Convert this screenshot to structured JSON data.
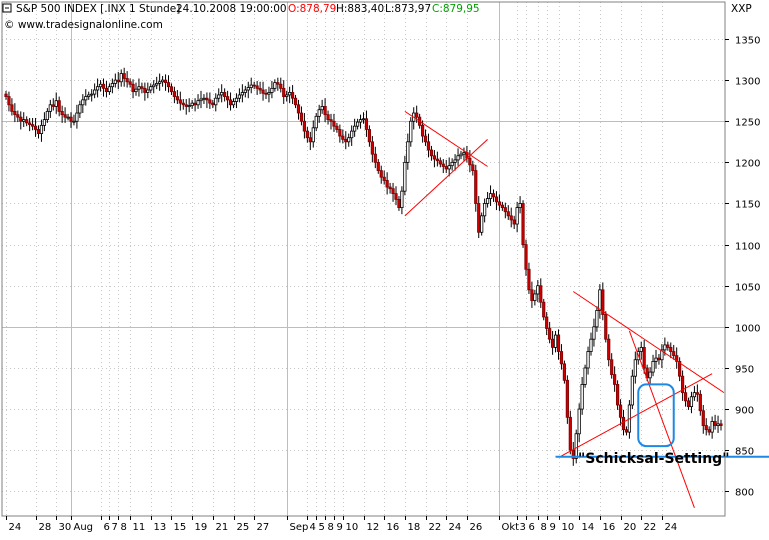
{
  "header": {
    "symbol": "S&P 500 INDEX [.INX  1 Stunde]",
    "datetime": "24.10.2008 19:00:00",
    "open": "O:878,79",
    "high": "H:883,40",
    "low": "L:873,97",
    "close": "C:879,95",
    "source": "© www.tradesignalonline.com",
    "axis_code": "XXP",
    "colors": {
      "open": "#ff0000",
      "close": "#00a000",
      "text": "#000000"
    }
  },
  "chart_data": {
    "type": "candlestick",
    "title": "S&P 500 INDEX [.INX  1 Stunde]",
    "ylim": [
      770,
      1395
    ],
    "y_ticks": [
      800,
      850,
      900,
      950,
      1000,
      1050,
      1100,
      1150,
      1200,
      1250,
      1300,
      1350
    ],
    "y_tick_labels": [
      "800",
      "850",
      "900",
      "950",
      "1000",
      "1050",
      "1100",
      "1150",
      "1200",
      "1250",
      "1300",
      "1350"
    ],
    "x_ticks": [
      {
        "label": "24",
        "i": 0
      },
      {
        "label": "28",
        "i": 10
      },
      {
        "label": "30",
        "i": 17
      },
      {
        "label": "Aug",
        "i": 22
      },
      {
        "label": "6",
        "i": 32
      },
      {
        "label": "7",
        "i": 35
      },
      {
        "label": "8",
        "i": 38
      },
      {
        "label": "11",
        "i": 42
      },
      {
        "label": "13",
        "i": 49
      },
      {
        "label": "15",
        "i": 56
      },
      {
        "label": "19",
        "i": 63
      },
      {
        "label": "21",
        "i": 70
      },
      {
        "label": "25",
        "i": 77
      },
      {
        "label": "27",
        "i": 84
      },
      {
        "label": "Sep",
        "i": 95
      },
      {
        "label": "4",
        "i": 102
      },
      {
        "label": "5",
        "i": 105
      },
      {
        "label": "8",
        "i": 108
      },
      {
        "label": "9",
        "i": 111
      },
      {
        "label": "10",
        "i": 114
      },
      {
        "label": "12",
        "i": 121
      },
      {
        "label": "16",
        "i": 128
      },
      {
        "label": "18",
        "i": 135
      },
      {
        "label": "22",
        "i": 142
      },
      {
        "label": "24",
        "i": 149
      },
      {
        "label": "26",
        "i": 156
      },
      {
        "label": "Okt",
        "i": 167
      },
      {
        "label": "3",
        "i": 173
      },
      {
        "label": "6",
        "i": 176
      },
      {
        "label": "8",
        "i": 180
      },
      {
        "label": "9",
        "i": 183
      },
      {
        "label": "10",
        "i": 187
      },
      {
        "label": "14",
        "i": 194
      },
      {
        "label": "16",
        "i": 201
      },
      {
        "label": "20",
        "i": 208
      },
      {
        "label": "22",
        "i": 215
      },
      {
        "label": "24",
        "i": 222
      }
    ],
    "grid": "dotted",
    "support_line": {
      "value": 842,
      "color": "#1e88e5"
    },
    "trend_lines": [
      {
        "color": "#ff0000",
        "from": {
          "i": 135,
          "v": 1262
        },
        "to": {
          "i": 163,
          "v": 1195
        }
      },
      {
        "color": "#ff0000",
        "from": {
          "i": 135,
          "v": 1135
        },
        "to": {
          "i": 163,
          "v": 1228
        }
      },
      {
        "color": "#ff0000",
        "from": {
          "i": 192,
          "v": 1043
        },
        "to": {
          "i": 243,
          "v": 920
        }
      },
      {
        "color": "#ff0000",
        "from": {
          "i": 188,
          "v": 843
        },
        "to": {
          "i": 239,
          "v": 943
        }
      },
      {
        "color": "#ff0000",
        "from": {
          "i": 211,
          "v": 995
        },
        "to": {
          "i": 233,
          "v": 780
        }
      }
    ],
    "highlight_box": {
      "from_i": 214,
      "to_i": 226,
      "v_top": 930,
      "v_bottom": 855,
      "color": "#1e88e5"
    },
    "annotation": "\"Schicksal-Setting\"",
    "closes": [
      1280,
      1270,
      1262,
      1258,
      1255,
      1250,
      1252,
      1248,
      1246,
      1244,
      1240,
      1235,
      1245,
      1252,
      1262,
      1270,
      1268,
      1275,
      1262,
      1258,
      1255,
      1255,
      1250,
      1250,
      1260,
      1270,
      1276,
      1280,
      1282,
      1283,
      1288,
      1292,
      1295,
      1290,
      1286,
      1292,
      1296,
      1300,
      1298,
      1308,
      1302,
      1298,
      1295,
      1286,
      1289,
      1292,
      1290,
      1285,
      1288,
      1292,
      1294,
      1296,
      1298,
      1300,
      1297,
      1292,
      1286,
      1280,
      1276,
      1272,
      1270,
      1268,
      1269,
      1272,
      1270,
      1275,
      1277,
      1278,
      1276,
      1272,
      1270,
      1278,
      1282,
      1285,
      1280,
      1276,
      1270,
      1274,
      1278,
      1282,
      1285,
      1288,
      1291,
      1294,
      1293,
      1290,
      1288,
      1284,
      1283,
      1285,
      1290,
      1297,
      1295,
      1290,
      1280,
      1282,
      1285,
      1278,
      1270,
      1260,
      1250,
      1238,
      1230,
      1225,
      1242,
      1256,
      1264,
      1268,
      1258,
      1252,
      1250,
      1244,
      1240,
      1232,
      1228,
      1225,
      1230,
      1238,
      1244,
      1249,
      1252,
      1253,
      1240,
      1225,
      1210,
      1200,
      1190,
      1182,
      1178,
      1170,
      1168,
      1162,
      1155,
      1145,
      1165,
      1200,
      1225,
      1250,
      1260,
      1255,
      1245,
      1232,
      1225,
      1215,
      1208,
      1204,
      1202,
      1198,
      1195,
      1192,
      1196,
      1200,
      1203,
      1208,
      1210,
      1212,
      1205,
      1197,
      1190,
      1150,
      1115,
      1135,
      1150,
      1156,
      1162,
      1158,
      1152,
      1148,
      1145,
      1140,
      1135,
      1130,
      1125,
      1145,
      1150,
      1100,
      1070,
      1045,
      1032,
      1040,
      1050,
      1030,
      1012,
      998,
      985,
      975,
      990,
      970,
      955,
      935,
      890,
      850,
      840,
      870,
      900,
      930,
      950,
      970,
      985,
      1000,
      1020,
      1045,
      1015,
      985,
      960,
      942,
      930,
      905,
      890,
      875,
      872,
      905,
      940,
      960,
      970,
      975,
      950,
      938,
      945,
      958,
      962,
      960,
      972,
      978,
      975,
      970,
      965,
      958,
      940,
      920,
      910,
      903,
      915,
      920,
      918,
      898,
      880,
      875,
      872,
      885,
      880,
      882,
      880
    ]
  }
}
